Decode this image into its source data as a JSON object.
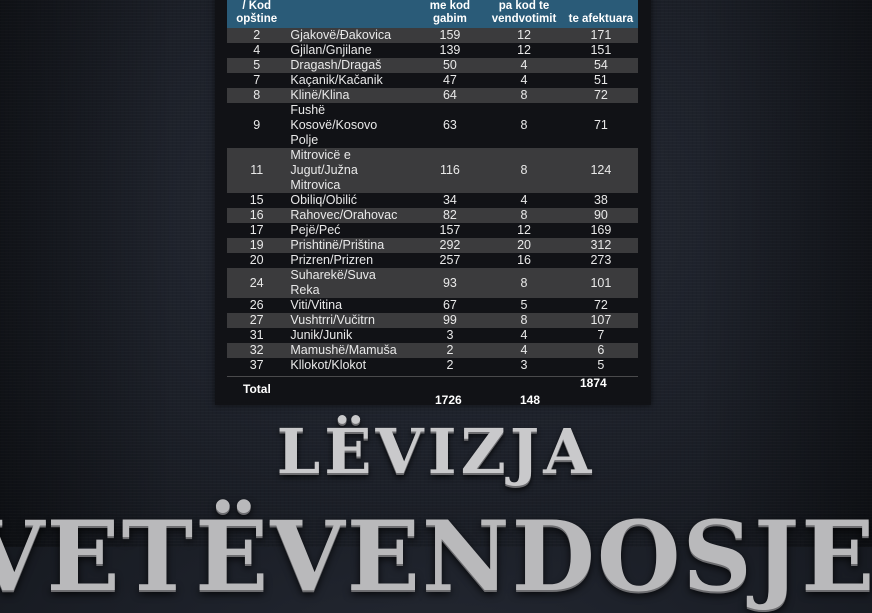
{
  "table": {
    "headers": {
      "code": "/ Kod opštine",
      "name": "",
      "votes_with_error": "me kod gabim",
      "votes_without_code": "pa kod te vendvotimit",
      "total_affected": "te afektuara"
    },
    "rows": [
      {
        "code": "2",
        "name": "Gjakovë/Đakovica",
        "a": "159",
        "b": "12",
        "c": "171"
      },
      {
        "code": "4",
        "name": "Gjilan/Gnjilane",
        "a": "139",
        "b": "12",
        "c": "151"
      },
      {
        "code": "5",
        "name": "Dragash/Dragaš",
        "a": "50",
        "b": "4",
        "c": "54"
      },
      {
        "code": "7",
        "name": "Kaçanik/Kačanik",
        "a": "47",
        "b": "4",
        "c": "51"
      },
      {
        "code": "8",
        "name": "Klinë/Klina",
        "a": "64",
        "b": "8",
        "c": "72"
      },
      {
        "code": "9",
        "name": "Fushë Kosovë/Kosovo Polje",
        "a": "63",
        "b": "8",
        "c": "71"
      },
      {
        "code": "11",
        "name": "Mitrovicë e Jugut/Južna Mitrovica",
        "a": "116",
        "b": "8",
        "c": "124"
      },
      {
        "code": "15",
        "name": "Obiliq/Obilić",
        "a": "34",
        "b": "4",
        "c": "38"
      },
      {
        "code": "16",
        "name": "Rahovec/Orahovac",
        "a": "82",
        "b": "8",
        "c": "90"
      },
      {
        "code": "17",
        "name": "Pejë/Peć",
        "a": "157",
        "b": "12",
        "c": "169"
      },
      {
        "code": "19",
        "name": "Prishtinë/Priština",
        "a": "292",
        "b": "20",
        "c": "312"
      },
      {
        "code": "20",
        "name": "Prizren/Prizren",
        "a": "257",
        "b": "16",
        "c": "273"
      },
      {
        "code": "24",
        "name": "Suharekë/Suva Reka",
        "a": "93",
        "b": "8",
        "c": "101"
      },
      {
        "code": "26",
        "name": "Viti/Vitina",
        "a": "67",
        "b": "5",
        "c": "72"
      },
      {
        "code": "27",
        "name": "Vushtrri/Vučitrn",
        "a": "99",
        "b": "8",
        "c": "107"
      },
      {
        "code": "31",
        "name": "Junik/Junik",
        "a": "3",
        "b": "4",
        "c": "7"
      },
      {
        "code": "32",
        "name": "Mamushë/Mamuša",
        "a": "2",
        "b": "4",
        "c": "6"
      },
      {
        "code": "37",
        "name": "Kllokot/Klokot",
        "a": "2",
        "b": "3",
        "c": "5"
      }
    ],
    "total": {
      "label": "Total",
      "a": "1726",
      "b": "148",
      "c": "1874"
    }
  },
  "logo": {
    "line1": "LËVIZJA",
    "line2": "VETËVENDOSJE!"
  },
  "colors": {
    "header_bg": "#2a5b78",
    "row_alt": "#3b3b3d",
    "row_plain": "#111216",
    "background": "#1e222b"
  }
}
